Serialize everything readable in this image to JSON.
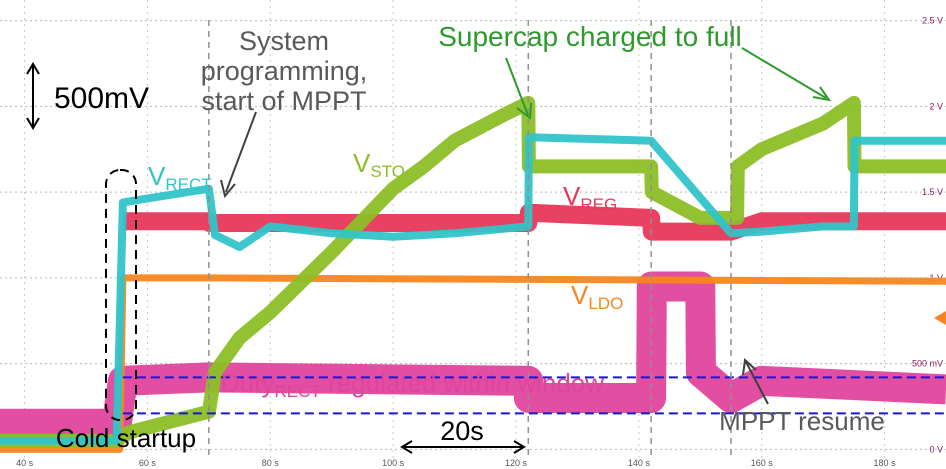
{
  "chart_data": {
    "type": "line",
    "title": "",
    "xlabel": "",
    "ylabel": "",
    "xlim": [
      36,
      190
    ],
    "ylim": [
      -0.05,
      2.62
    ],
    "x_ticks": [
      40,
      60,
      80,
      100,
      120,
      140,
      160,
      180
    ],
    "x_tick_labels": [
      "40 s",
      "60 s",
      "80 s",
      "100 s",
      "120 s",
      "140 s",
      "160 s",
      "180 s"
    ],
    "y_ticks": [
      0,
      0.5,
      1,
      1.5,
      2,
      2.5
    ],
    "y_tick_labels": [
      "0 V",
      "500 mV",
      "1 V",
      "1.5 V",
      "2 V",
      "2.5 V"
    ],
    "grid": true,
    "series": [
      {
        "name": "VSTO",
        "color": "#8cbf26",
        "x": [
          36,
          55,
          57,
          70,
          71,
          75,
          80,
          90,
          100,
          105,
          110,
          118,
          122,
          122.1,
          136,
          142,
          142.1,
          150,
          156,
          156.1,
          160,
          170,
          175,
          175.1,
          190
        ],
        "y": [
          0.05,
          0.05,
          0.1,
          0.22,
          0.45,
          0.65,
          0.8,
          1.15,
          1.52,
          1.65,
          1.8,
          1.95,
          2.02,
          1.65,
          1.65,
          1.65,
          1.5,
          1.35,
          1.35,
          1.65,
          1.75,
          1.9,
          2.02,
          1.65,
          1.65
        ]
      },
      {
        "name": "VRECT",
        "color": "#31c4c9",
        "x": [
          36,
          55,
          56,
          70,
          71,
          75,
          80,
          90,
          100,
          110,
          122,
          122.1,
          142,
          155,
          160,
          170,
          175,
          175.1,
          190
        ],
        "y": [
          0.05,
          0.05,
          1.44,
          1.52,
          1.25,
          1.18,
          1.3,
          1.26,
          1.24,
          1.26,
          1.3,
          1.82,
          1.8,
          1.26,
          1.27,
          1.3,
          1.3,
          1.8,
          1.8
        ]
      },
      {
        "name": "VREG",
        "color": "#e8375a",
        "x": [
          56,
          70,
          70.1,
          122,
          122.1,
          142,
          142.1,
          155,
          160,
          190
        ],
        "y": [
          1.33,
          1.33,
          1.32,
          1.32,
          1.38,
          1.35,
          1.27,
          1.27,
          1.33,
          1.33
        ]
      },
      {
        "name": "VLDO",
        "color": "#f5861f",
        "x": [
          36,
          55.5,
          56,
          70,
          190
        ],
        "y": [
          0,
          0,
          1,
          1,
          0.98
        ]
      },
      {
        "name": "DutyRECT",
        "color": "#e0449c",
        "x": [
          36,
          55,
          56,
          70,
          122,
          122.1,
          142,
          142.1,
          150,
          150.1,
          155,
          160,
          190
        ],
        "y": [
          0.15,
          0.15,
          0.4,
          0.42,
          0.4,
          0.3,
          0.3,
          0.95,
          0.95,
          0.45,
          0.3,
          0.4,
          0.35
        ]
      }
    ],
    "window_bounds": [
      0.42,
      0.21
    ],
    "annotations": [
      "500mV",
      "System programming, start of MPPT",
      "Supercap charged to full",
      "Cold startup",
      "20s",
      "MPPT resume",
      "regulated within window"
    ],
    "labels": {
      "vrect_main": "V",
      "vrect_sub": "RECT",
      "vsto_main": "V",
      "vsto_sub": "STO",
      "vreg_main": "V",
      "vreg_sub": "REG",
      "vldo_main": "V",
      "vldo_sub": "LDO",
      "duty_main": "Duty",
      "duty_sub": "RECT"
    }
  },
  "annotations": {
    "scale_bar": "500mV",
    "system_programming_line1": "System",
    "system_programming_line2": "programming,",
    "system_programming_line3": "start of MPPT",
    "supercap": "Supercap charged to full",
    "cold_startup": "Cold startup",
    "time_bar": "20s",
    "mppt_resume": "MPPT resume",
    "duty_suffix": " regulated within window"
  }
}
